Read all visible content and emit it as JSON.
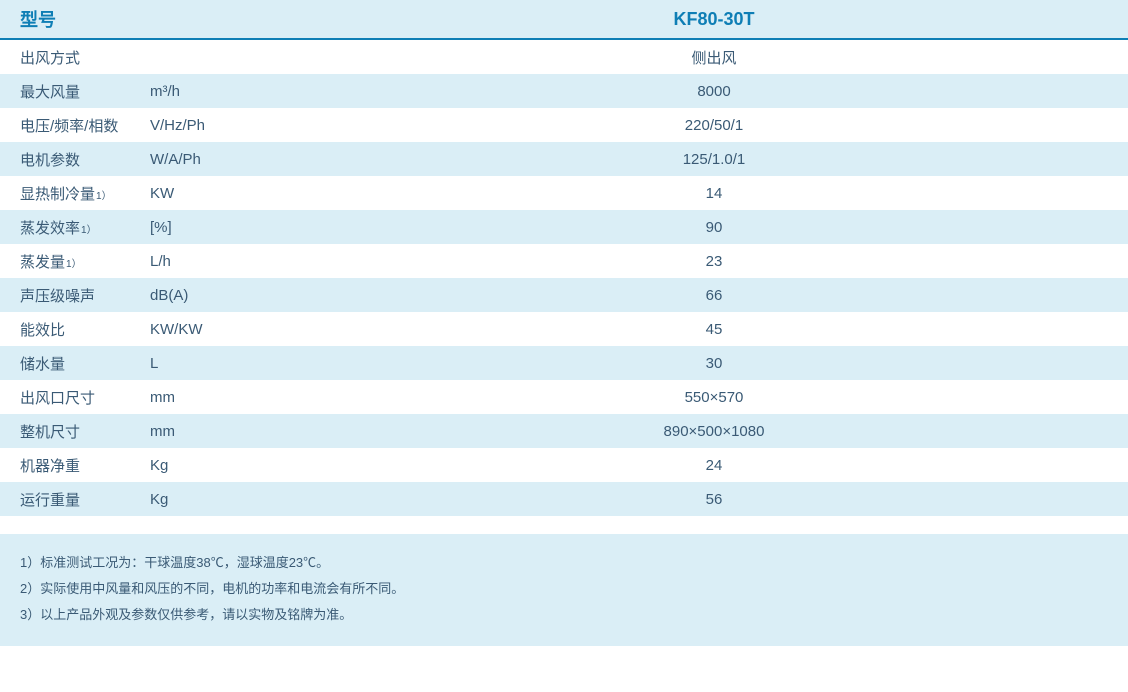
{
  "colors": {
    "header_text": "#0e7eb5",
    "body_text": "#3a5a75",
    "row_even_bg": "#daeef6",
    "row_odd_bg": "#ffffff",
    "border": "#0e7eb5"
  },
  "table": {
    "type": "table",
    "header": {
      "label": "型号",
      "value": "KF80-30T"
    },
    "rows": [
      {
        "label": "出风方式",
        "sup": "",
        "unit": "",
        "value": "侧出风"
      },
      {
        "label": "最大风量",
        "sup": "",
        "unit": "m³/h",
        "value": "8000"
      },
      {
        "label": "电压/频率/相数",
        "sup": "",
        "unit": "V/Hz/Ph",
        "value": "220/50/1"
      },
      {
        "label": "电机参数",
        "sup": "",
        "unit": "W/A/Ph",
        "value": "125/1.0/1"
      },
      {
        "label": "显热制冷量",
        "sup": "1）",
        "unit": "KW",
        "value": "14"
      },
      {
        "label": "蒸发效率",
        "sup": "1）",
        "unit": "[%]",
        "value": "90"
      },
      {
        "label": "蒸发量",
        "sup": "1）",
        "unit": "L/h",
        "value": "23"
      },
      {
        "label": "声压级噪声",
        "sup": "",
        "unit": "dB(A)",
        "value": "66"
      },
      {
        "label": "能效比",
        "sup": "",
        "unit": "KW/KW",
        "value": "45"
      },
      {
        "label": "储水量",
        "sup": "",
        "unit": "L",
        "value": "30"
      },
      {
        "label": "出风口尺寸",
        "sup": "",
        "unit": "mm",
        "value": "550×570"
      },
      {
        "label": "整机尺寸",
        "sup": "",
        "unit": "mm",
        "value": "890×500×1080"
      },
      {
        "label": "机器净重",
        "sup": "",
        "unit": "Kg",
        "value": "24"
      },
      {
        "label": "运行重量",
        "sup": "",
        "unit": "Kg",
        "value": "56"
      }
    ]
  },
  "footnotes": [
    "1）标准测试工况为：干球温度38℃，湿球温度23℃。",
    "2）实际使用中风量和风压的不同，电机的功率和电流会有所不同。",
    "3）以上产品外观及参数仅供参考，请以实物及铭牌为准。"
  ]
}
